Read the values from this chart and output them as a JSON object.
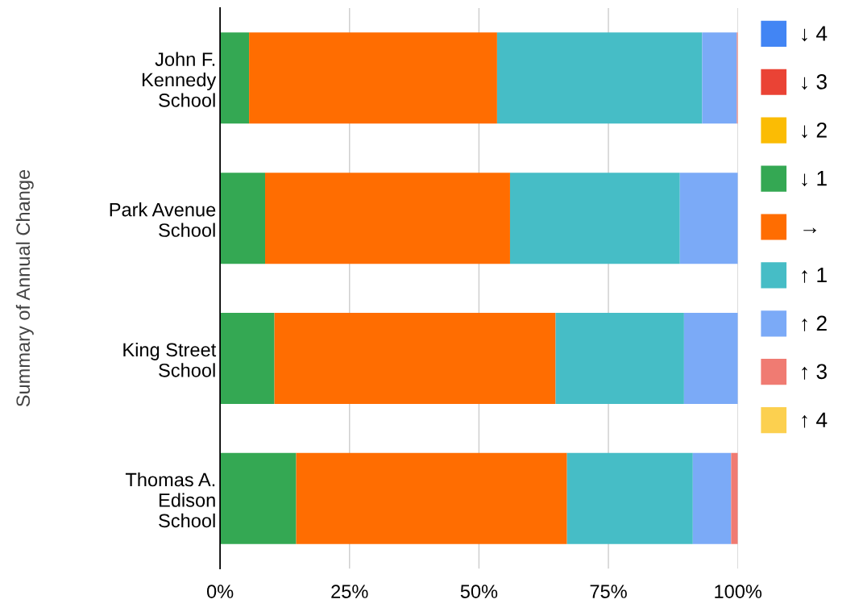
{
  "chart_data": {
    "type": "bar",
    "orientation": "horizontal",
    "stacked": true,
    "ylabel": "Summary of Annual Change",
    "categories": [
      "John F.\nKennedy\nSchool",
      "Park Avenue\nSchool",
      "King Street\nSchool",
      "Thomas A.\nEdison\nSchool"
    ],
    "series": [
      {
        "name": "↓ 4",
        "color": "#4285f4",
        "values": [
          0,
          0,
          0,
          0
        ]
      },
      {
        "name": "↓ 3",
        "color": "#ea4335",
        "values": [
          0,
          0,
          0,
          0
        ]
      },
      {
        "name": "↓ 2",
        "color": "#fbbc04",
        "values": [
          0,
          0,
          0,
          0
        ]
      },
      {
        "name": "↓ 1",
        "color": "#34a853",
        "values": [
          5.6,
          8.7,
          10.5,
          14.7
        ]
      },
      {
        "name": "→",
        "color": "#ff6d01",
        "values": [
          47.9,
          47.3,
          54.3,
          52.3
        ]
      },
      {
        "name": "↑ 1",
        "color": "#46bdc6",
        "values": [
          39.6,
          32.8,
          24.8,
          24.3
        ]
      },
      {
        "name": "↑ 2",
        "color": "#7baaf7",
        "values": [
          6.7,
          11.2,
          10.4,
          7.4
        ]
      },
      {
        "name": "↑ 3",
        "color": "#f07b72",
        "values": [
          0.2,
          0,
          0,
          1.3
        ]
      },
      {
        "name": "↑ 4",
        "color": "#fcd04f",
        "values": [
          0,
          0,
          0,
          0
        ]
      }
    ],
    "xlim": [
      0,
      100
    ],
    "xticks": [
      {
        "value": 0,
        "label": "0%"
      },
      {
        "value": 25,
        "label": "25%"
      },
      {
        "value": 50,
        "label": "50%"
      },
      {
        "value": 75,
        "label": "75%"
      },
      {
        "value": 100,
        "label": "100%"
      }
    ],
    "grid": "x",
    "legend": "right"
  }
}
